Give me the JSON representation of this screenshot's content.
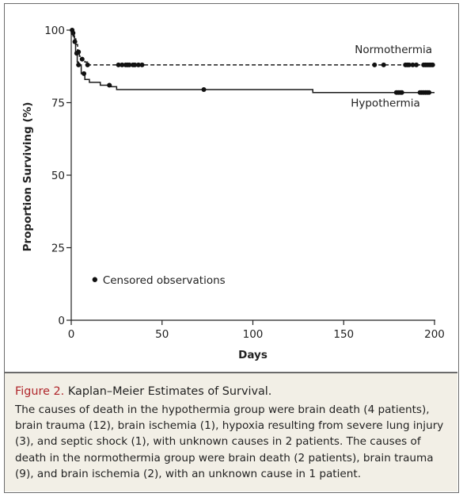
{
  "chart_data": {
    "type": "line",
    "title": "",
    "xlabel": "Days",
    "ylabel": "Proportion Surviving (%)",
    "xlim": [
      0,
      200
    ],
    "ylim": [
      0,
      100
    ],
    "x_ticks": [
      0,
      50,
      100,
      150,
      200
    ],
    "y_ticks": [
      0,
      25,
      50,
      75,
      100
    ],
    "grid": false,
    "legend": {
      "position": "lower-left",
      "label": "Censored observations"
    },
    "series": [
      {
        "name": "Normothermia",
        "style": "dashed",
        "color": "#1a1a1a",
        "steps": [
          [
            0,
            100
          ],
          [
            0.8,
            99
          ],
          [
            1.5,
            97
          ],
          [
            2.5,
            95
          ],
          [
            3.5,
            92.5
          ],
          [
            4.5,
            91
          ],
          [
            6,
            90
          ],
          [
            7.5,
            89
          ],
          [
            9,
            88
          ]
        ],
        "end_x": 200,
        "censored_x": [
          1,
          4,
          6,
          9,
          26,
          28,
          30,
          31,
          32,
          34,
          35,
          37,
          39,
          167,
          172,
          184,
          185,
          186,
          188,
          190,
          194,
          195,
          196,
          197,
          198,
          199
        ]
      },
      {
        "name": "Hypothermia",
        "style": "solid",
        "color": "#1a1a1a",
        "steps": [
          [
            0,
            100
          ],
          [
            1,
            98
          ],
          [
            1.8,
            96
          ],
          [
            2.4,
            92
          ],
          [
            3.3,
            89
          ],
          [
            4,
            88
          ],
          [
            5.5,
            85
          ],
          [
            7.5,
            83
          ],
          [
            10,
            82
          ],
          [
            16,
            81
          ],
          [
            22,
            80.5
          ],
          [
            25,
            79.5
          ],
          [
            133,
            78.5
          ]
        ],
        "end_x": 200,
        "censored_x": [
          0.5,
          2,
          3,
          4,
          7,
          21,
          73,
          179,
          180,
          181,
          182,
          192,
          193,
          194,
          195,
          196,
          197
        ]
      }
    ]
  },
  "caption": {
    "label": "Figure 2.",
    "title": "Kaplan–Meier Estimates of Survival.",
    "text": "The causes of death in the hypothermia group were brain death (4 patients), brain trauma (12), brain ischemia (1), hypoxia resulting from severe lung injury (3), and septic shock (1), with unknown causes in 2 patients. The causes of death in the normothermia group were brain death (2 patients), brain trauma (9), and brain ischemia (2), with an unknown cause in 1 patient."
  }
}
